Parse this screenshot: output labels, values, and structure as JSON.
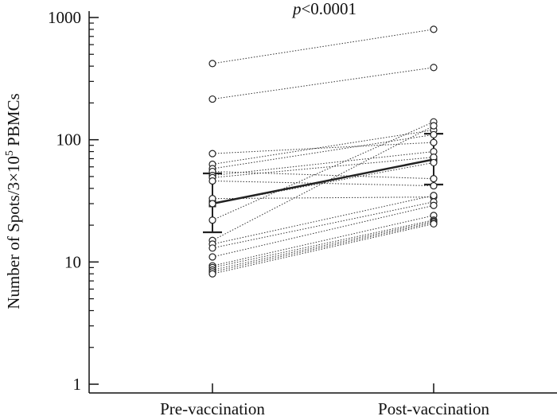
{
  "chart_data": {
    "type": "scatter",
    "title": "",
    "annotation": {
      "italic": "p",
      "rest": "<0.0001"
    },
    "categories": [
      "Pre-vaccination",
      "Post-vaccination"
    ],
    "ylabel": "Number of Spots/3×10⁵ PBMCs",
    "ylabel_parts": {
      "main": "Number of Spots/3×10",
      "sup": "5",
      "tail": " PBMCs"
    },
    "yscale": "log",
    "ylim": [
      1,
      1000
    ],
    "yticks": [
      "1",
      "10",
      "100",
      "1000"
    ],
    "grid": false,
    "subjects": [
      {
        "pre": 420,
        "post": 800
      },
      {
        "pre": 215,
        "post": 390
      },
      {
        "pre": 77,
        "post": 95
      },
      {
        "pre": 63,
        "post": 120
      },
      {
        "pre": 58,
        "post": 110
      },
      {
        "pre": 55,
        "post": 48
      },
      {
        "pre": 51,
        "post": 80
      },
      {
        "pre": 49,
        "post": 72
      },
      {
        "pre": 46,
        "post": 42
      },
      {
        "pre": 33,
        "post": 34
      },
      {
        "pre": 30,
        "post": 65
      },
      {
        "pre": 22,
        "post": 140
      },
      {
        "pre": 15,
        "post": 130
      },
      {
        "pre": 14,
        "post": 35
      },
      {
        "pre": 13,
        "post": 31
      },
      {
        "pre": 11,
        "post": 29
      },
      {
        "pre": 9.3,
        "post": 24
      },
      {
        "pre": 9.0,
        "post": 22
      },
      {
        "pre": 8.6,
        "post": 21.5
      },
      {
        "pre": 8.3,
        "post": 21
      },
      {
        "pre": 8.0,
        "post": 20.5
      }
    ],
    "summary": {
      "pre": {
        "mean": 30,
        "upper": 53,
        "lower": 17.5
      },
      "post": {
        "mean": 69,
        "upper": 112,
        "lower": 43
      }
    }
  }
}
